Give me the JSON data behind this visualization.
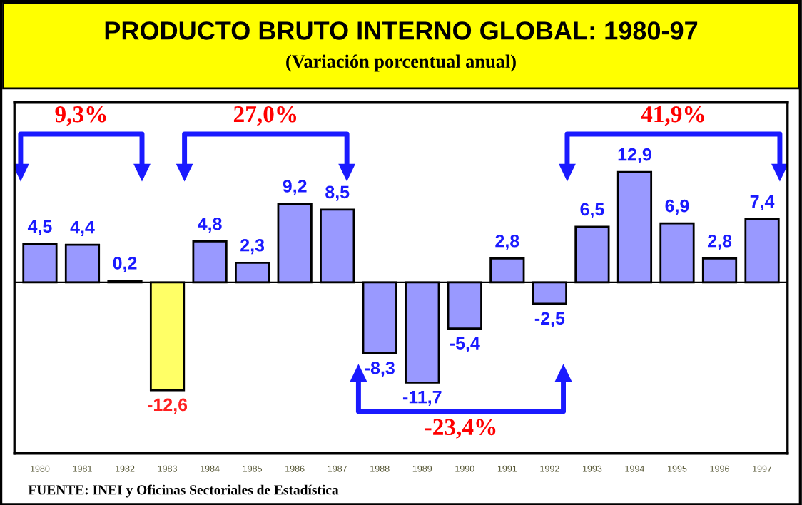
{
  "chart_data": {
    "type": "bar",
    "title": "PRODUCTO BRUTO INTERNO GLOBAL: 1980-97",
    "subtitle": "(Variación porcentual anual)",
    "categories": [
      "1980",
      "1981",
      "1982",
      "1983",
      "1984",
      "1985",
      "1986",
      "1987",
      "1988",
      "1989",
      "1990",
      "1991",
      "1992",
      "1993",
      "1994",
      "1995",
      "1996",
      "1997"
    ],
    "values": [
      4.5,
      4.4,
      0.2,
      -12.6,
      4.8,
      2.3,
      9.2,
      8.5,
      -8.3,
      -11.7,
      -5.4,
      2.8,
      -2.5,
      6.5,
      12.9,
      6.9,
      2.8,
      7.4
    ],
    "colors": [
      "#9999ff",
      "#9999ff",
      "#9999ff",
      "#ffff66",
      "#9999ff",
      "#9999ff",
      "#9999ff",
      "#9999ff",
      "#9999ff",
      "#9999ff",
      "#9999ff",
      "#9999ff",
      "#9999ff",
      "#9999ff",
      "#9999ff",
      "#9999ff",
      "#9999ff",
      "#9999ff"
    ],
    "value_labels": [
      "4,5",
      "4,4",
      "0,2",
      "-12,6",
      "4,8",
      "2,3",
      "9,2",
      "8,5",
      "-8,3",
      "-11,7",
      "-5,4",
      "2,8",
      "-2,5",
      "6,5",
      "12,9",
      "6,9",
      "2,8",
      "7,4"
    ],
    "annotations": [
      "9,3%",
      "27,0%",
      "-23,4%",
      "41,9%",
      "FUENTE: INEI y Oficinas Sectoriales de Estadística"
    ],
    "grid": false,
    "legend": false
  }
}
